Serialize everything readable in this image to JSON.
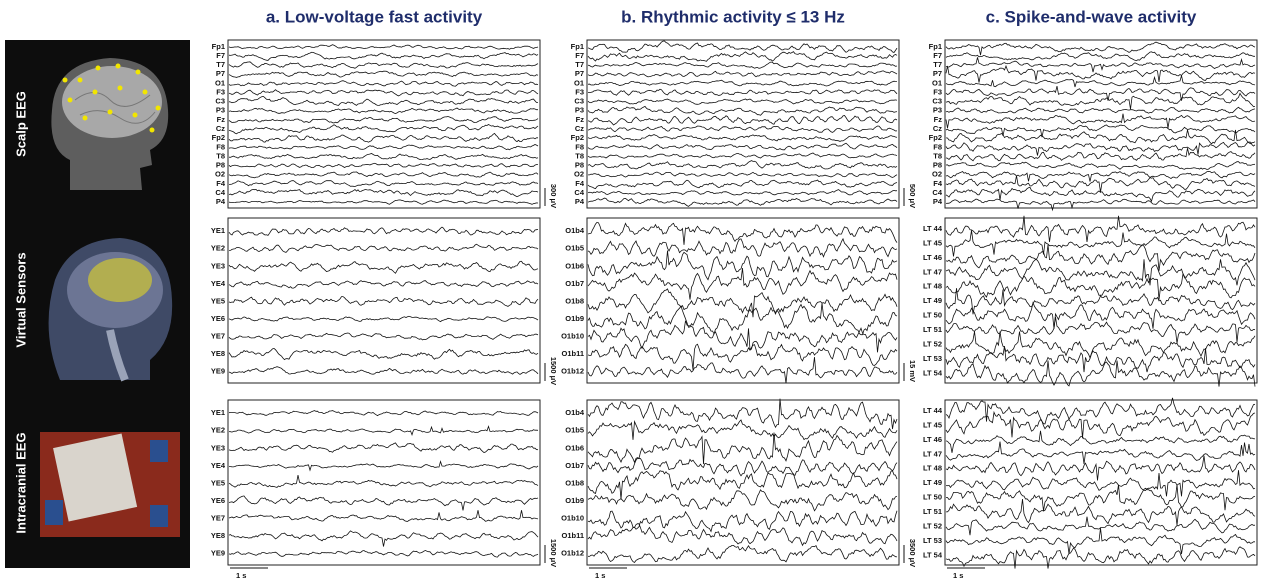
{
  "rows": [
    {
      "label": "Scalp EEG"
    },
    {
      "label": "Virtual Sensors"
    },
    {
      "label": "Intracranial EEG"
    }
  ],
  "columns": [
    {
      "title": "a. Low-voltage fast activity",
      "time_scale": "1 s",
      "panels": [
        {
          "channels": [
            "Fp1",
            "F7",
            "T7",
            "P7",
            "O1",
            "F3",
            "C3",
            "P3",
            "Fz",
            "Cz",
            "Fp2",
            "F8",
            "T8",
            "P8",
            "O2",
            "F4",
            "C4",
            "P4"
          ],
          "scale": "300 μV"
        },
        {
          "channels": [
            "YE1",
            "YE2",
            "YE3",
            "YE4",
            "YE5",
            "YE6",
            "YE7",
            "YE8",
            "YE9"
          ],
          "scale": "1500 μV"
        },
        {
          "channels": [
            "YE1",
            "YE2",
            "YE3",
            "YE4",
            "YE5",
            "YE6",
            "YE7",
            "YE8",
            "YE9"
          ],
          "scale": "1500 μV"
        }
      ]
    },
    {
      "title": "b. Rhythmic activity ≤ 13 Hz",
      "time_scale": "1 s",
      "panels": [
        {
          "channels": [
            "Fp1",
            "F7",
            "T7",
            "P7",
            "O1",
            "F3",
            "C3",
            "P3",
            "Fz",
            "Cz",
            "Fp2",
            "F8",
            "T8",
            "P8",
            "O2",
            "F4",
            "C4",
            "P4"
          ],
          "scale": "500 μV"
        },
        {
          "channels": [
            "O1b4",
            "O1b5",
            "O1b6",
            "O1b7",
            "O1b8",
            "O1b9",
            "O1b10",
            "O1b11",
            "O1b12"
          ],
          "scale": "15 mV"
        },
        {
          "channels": [
            "O1b4",
            "O1b5",
            "O1b6",
            "O1b7",
            "O1b8",
            "O1b9",
            "O1b10",
            "O1b11",
            "O1b12"
          ],
          "scale": "3500 μV"
        }
      ]
    },
    {
      "title": "c. Spike-and-wave activity",
      "time_scale": "1 s",
      "panels": [
        {
          "channels": [
            "Fp1",
            "F7",
            "T7",
            "P7",
            "O1",
            "F3",
            "C3",
            "P3",
            "Fz",
            "Cz",
            "Fp2",
            "F8",
            "T8",
            "P8",
            "O2",
            "F4",
            "C4",
            "P4"
          ]
        },
        {
          "channels": [
            "LT 44",
            "LT 45",
            "LT 46",
            "LT 47",
            "LT 48",
            "LT 49",
            "LT 50",
            "LT 51",
            "LT 52",
            "LT 53",
            "LT 54"
          ]
        },
        {
          "channels": [
            "LT 44",
            "LT 45",
            "LT 46",
            "LT 47",
            "LT 48",
            "LT 49",
            "LT 50",
            "LT 51",
            "LT 52",
            "LT 53",
            "LT 54"
          ]
        }
      ]
    }
  ]
}
